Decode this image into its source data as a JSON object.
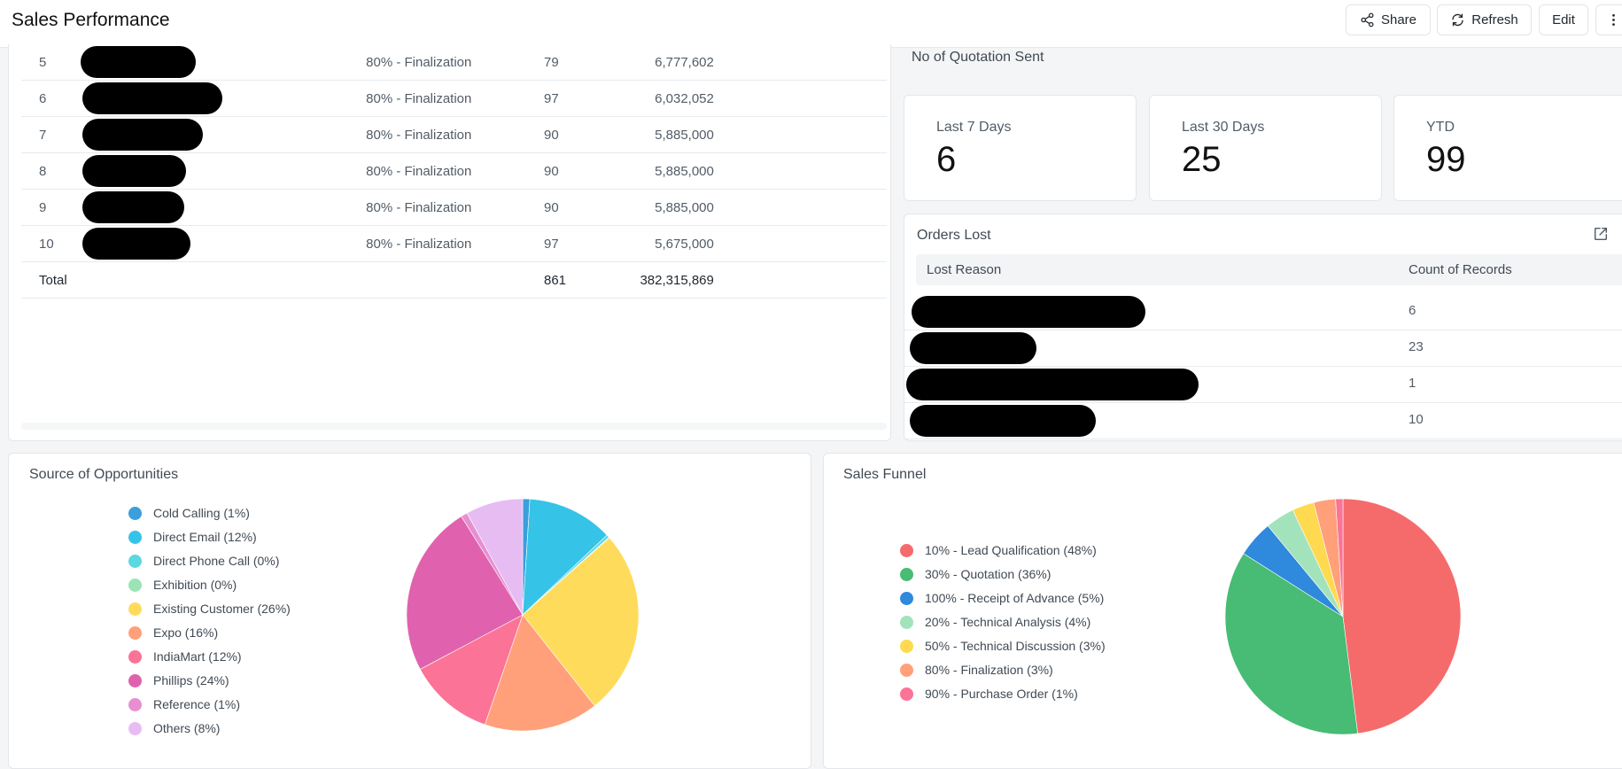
{
  "header": {
    "title": "Sales Performance",
    "share_label": "Share",
    "refresh_label": "Refresh",
    "edit_label": "Edit"
  },
  "opportunities_table": {
    "rows": [
      {
        "rank": "5",
        "stage": "80% - Finalization",
        "count": "79",
        "amount": "6,777,602"
      },
      {
        "rank": "6",
        "stage": "80% - Finalization",
        "count": "97",
        "amount": "6,032,052"
      },
      {
        "rank": "7",
        "stage": "80% - Finalization",
        "count": "90",
        "amount": "5,885,000"
      },
      {
        "rank": "8",
        "stage": "80% - Finalization",
        "count": "90",
        "amount": "5,885,000"
      },
      {
        "rank": "9",
        "stage": "80% - Finalization",
        "count": "90",
        "amount": "5,885,000"
      },
      {
        "rank": "10",
        "stage": "80% - Finalization",
        "count": "97",
        "amount": "5,675,000"
      }
    ],
    "total": {
      "label": "Total",
      "count": "861",
      "amount": "382,315,869"
    }
  },
  "quotations": {
    "title": "No of Quotation Sent",
    "cards": [
      {
        "label": "Last 7 Days",
        "value": "6"
      },
      {
        "label": "Last 30 Days",
        "value": "25"
      },
      {
        "label": "YTD",
        "value": "99"
      }
    ]
  },
  "orders_lost": {
    "title": "Orders Lost",
    "columns": [
      "Lost Reason",
      "Count of Records"
    ],
    "rows": [
      {
        "count": "6"
      },
      {
        "count": "23"
      },
      {
        "count": "1"
      },
      {
        "count": "10"
      }
    ]
  },
  "source_chart": {
    "title": "Source of Opportunities",
    "legend": [
      {
        "label": "Cold Calling (1%)",
        "color": "#3a9fdc"
      },
      {
        "label": "Direct Email (12%)",
        "color": "#36c3e8"
      },
      {
        "label": "Direct Phone Call (0%)",
        "color": "#5bd8e0"
      },
      {
        "label": "Exhibition (0%)",
        "color": "#9be3b5"
      },
      {
        "label": "Existing Customer (26%)",
        "color": "#ffdb5c"
      },
      {
        "label": "Expo (16%)",
        "color": "#ffa07a"
      },
      {
        "label": "IndiaMart (12%)",
        "color": "#fb7396"
      },
      {
        "label": "Phillips (24%)",
        "color": "#e062ae"
      },
      {
        "label": "Reference (1%)",
        "color": "#e690d1"
      },
      {
        "label": "Others (8%)",
        "color": "#e7bcf3"
      }
    ]
  },
  "funnel_chart": {
    "title": "Sales Funnel",
    "legend": [
      {
        "label": "10% - Lead Qualification (48%)",
        "color": "#f56b6b"
      },
      {
        "label": "30% - Quotation (36%)",
        "color": "#48bb74"
      },
      {
        "label": "100% - Receipt of Advance (5%)",
        "color": "#2f89dc"
      },
      {
        "label": "20% - Technical Analysis (4%)",
        "color": "#a3e3bb"
      },
      {
        "label": "50% - Technical Discussion (3%)",
        "color": "#ffd94f"
      },
      {
        "label": "80% - Finalization (3%)",
        "color": "#ffa07a"
      },
      {
        "label": "90% - Purchase Order (1%)",
        "color": "#fb7396"
      }
    ]
  },
  "chart_data": [
    {
      "type": "pie",
      "title": "Source of Opportunities",
      "categories": [
        "Cold Calling",
        "Direct Email",
        "Direct Phone Call",
        "Exhibition",
        "Existing Customer",
        "Expo",
        "IndiaMart",
        "Phillips",
        "Reference",
        "Others"
      ],
      "values": [
        1,
        12,
        0.4,
        0.1,
        26,
        16,
        12,
        24,
        0.9,
        8
      ],
      "colors": [
        "#3a9fdc",
        "#36c3e8",
        "#5bd8e0",
        "#9be3b5",
        "#ffdb5c",
        "#ffa07a",
        "#fb7396",
        "#e062ae",
        "#e690d1",
        "#e7bcf3"
      ],
      "legend": "left"
    },
    {
      "type": "pie",
      "title": "Sales Funnel",
      "categories": [
        "10% - Lead Qualification",
        "30% - Quotation",
        "100% - Receipt of Advance",
        "20% - Technical Analysis",
        "50% - Technical Discussion",
        "80% - Finalization",
        "90% - Purchase Order"
      ],
      "values": [
        48,
        36,
        5,
        4,
        3,
        3,
        1
      ],
      "colors": [
        "#f56b6b",
        "#48bb74",
        "#2f89dc",
        "#a3e3bb",
        "#ffd94f",
        "#ffa07a",
        "#fb7396"
      ],
      "legend": "left"
    }
  ]
}
